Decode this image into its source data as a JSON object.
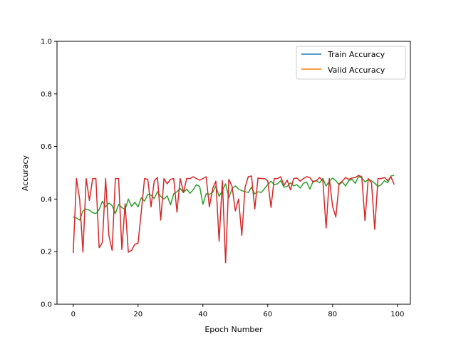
{
  "chart_data": {
    "type": "line",
    "title": "",
    "xlabel": "Epoch Number",
    "ylabel": "Accuracy",
    "xlim": [
      -5,
      104
    ],
    "ylim": [
      0.0,
      1.0
    ],
    "x_ticks": [
      0,
      20,
      40,
      60,
      80,
      100
    ],
    "x_tick_labels": [
      "0",
      "20",
      "40",
      "60",
      "80",
      "100"
    ],
    "y_ticks": [
      0.0,
      0.2,
      0.4,
      0.6,
      0.8,
      1.0
    ],
    "y_tick_labels": [
      "0.0",
      "0.2",
      "0.4",
      "0.6",
      "0.8",
      "1.0"
    ],
    "grid": false,
    "legend": {
      "position": "top-right",
      "entries": [
        {
          "name": "Train Accuracy",
          "color": "#1f77b4"
        },
        {
          "name": "Valid Accuracy",
          "color": "#ff7f0e"
        }
      ]
    },
    "series": [
      {
        "color": "#2ca02c",
        "values": [
          0.332,
          0.328,
          0.32,
          0.355,
          0.362,
          0.358,
          0.348,
          0.345,
          0.36,
          0.392,
          0.37,
          0.385,
          0.375,
          0.345,
          0.38,
          0.368,
          0.36,
          0.4,
          0.372,
          0.388,
          0.37,
          0.405,
          0.392,
          0.418,
          0.415,
          0.402,
          0.428,
          0.41,
          0.4,
          0.412,
          0.378,
          0.42,
          0.428,
          0.44,
          0.425,
          0.438,
          0.422,
          0.435,
          0.455,
          0.448,
          0.38,
          0.42,
          0.418,
          0.425,
          0.45,
          0.41,
          0.432,
          0.458,
          0.405,
          0.44,
          0.45,
          0.438,
          0.432,
          0.428,
          0.425,
          0.445,
          0.42,
          0.428,
          0.425,
          0.44,
          0.455,
          0.468,
          0.455,
          0.458,
          0.47,
          0.445,
          0.448,
          0.462,
          0.45,
          0.455,
          0.442,
          0.46,
          0.465,
          0.438,
          0.468,
          0.47,
          0.462,
          0.478,
          0.45,
          0.468,
          0.48,
          0.47,
          0.455,
          0.465,
          0.45,
          0.47,
          0.475,
          0.46,
          0.485,
          0.482,
          0.465,
          0.475,
          0.47,
          0.46,
          0.448,
          0.455,
          0.47,
          0.462,
          0.488,
          0.49
        ]
      },
      {
        "color": "#d62728",
        "values": [
          0.195,
          0.478,
          0.398,
          0.198,
          0.478,
          0.395,
          0.478,
          0.478,
          0.215,
          0.235,
          0.478,
          0.262,
          0.205,
          0.478,
          0.478,
          0.208,
          0.382,
          0.198,
          0.205,
          0.228,
          0.232,
          0.352,
          0.478,
          0.475,
          0.37,
          0.47,
          0.482,
          0.32,
          0.478,
          0.458,
          0.475,
          0.478,
          0.35,
          0.478,
          0.425,
          0.478,
          0.478,
          0.485,
          0.478,
          0.472,
          0.478,
          0.485,
          0.37,
          0.44,
          0.468,
          0.24,
          0.47,
          0.158,
          0.475,
          0.448,
          0.355,
          0.4,
          0.262,
          0.445,
          0.485,
          0.488,
          0.362,
          0.48,
          0.478,
          0.478,
          0.47,
          0.368,
          0.478,
          0.478,
          0.485,
          0.452,
          0.472,
          0.435,
          0.478,
          0.48,
          0.468,
          0.478,
          0.485,
          0.482,
          0.465,
          0.47,
          0.482,
          0.47,
          0.29,
          0.478,
          0.372,
          0.332,
          0.458,
          0.468,
          0.482,
          0.475,
          0.48,
          0.482,
          0.49,
          0.485,
          0.318,
          0.478,
          0.462,
          0.285,
          0.478,
          0.478,
          0.482,
          0.47,
          0.485,
          0.455
        ]
      }
    ]
  }
}
